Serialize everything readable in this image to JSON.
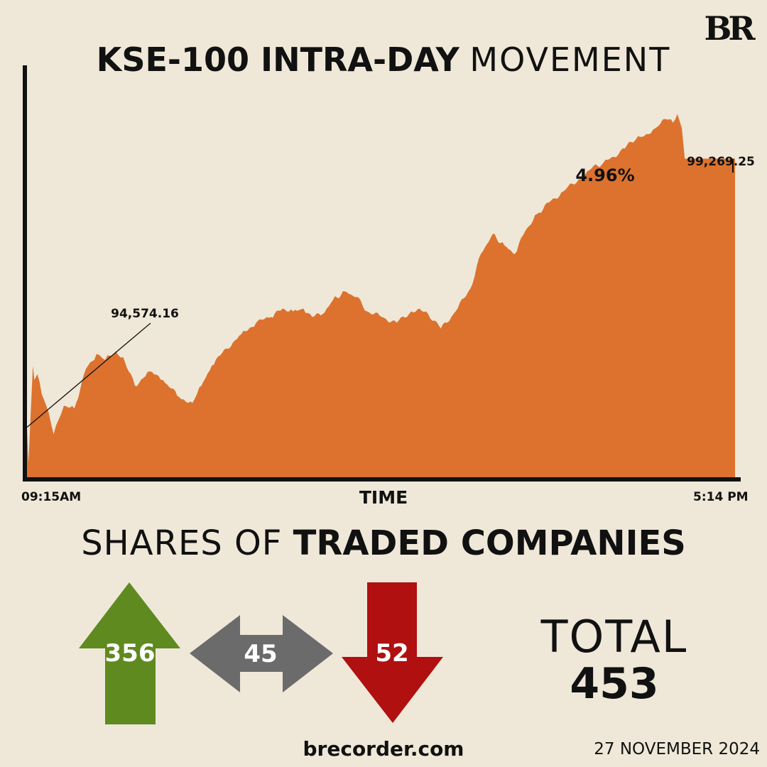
{
  "logo": "BR",
  "title": {
    "bold": "KSE-100 INTRA-DAY",
    "light": "MOVEMENT"
  },
  "colors": {
    "background": "#efe8d8",
    "area": "#dc722e",
    "advance": "#5f8a1f",
    "unchanged": "#6b6b6b",
    "decline": "#b01010",
    "text": "#111111"
  },
  "chart_data": {
    "type": "area",
    "title": "KSE-100 INTRA-DAY MOVEMENT",
    "xlabel": "TIME",
    "ylabel": "",
    "x_start_label": "09:15AM",
    "x_end_label": "5:14 PM",
    "ylim": [
      93700,
      100900
    ],
    "open_value": 94574.16,
    "close_value": 99269.25,
    "change_label": "4.96%",
    "open_label": "94,574.16",
    "close_label": "99,269.25",
    "x": [
      "09:15",
      "09:16",
      "09:19",
      "09:20",
      "09:22",
      "09:25",
      "09:28",
      "09:33",
      "09:38",
      "09:40",
      "09:47",
      "09:55",
      "10:02",
      "10:08",
      "10:15",
      "10:20",
      "10:28",
      "10:38",
      "10:47",
      "10:58",
      "11:07",
      "11:13",
      "11:20",
      "11:30",
      "11:40",
      "11:50",
      "12:00",
      "12:08",
      "12:15",
      "12:22",
      "12:28",
      "12:35",
      "12:42",
      "12:50",
      "12:58",
      "13:05",
      "13:15",
      "13:25",
      "13:35",
      "13:45",
      "13:55",
      "14:05",
      "14:15",
      "14:22",
      "14:30",
      "14:38",
      "14:45",
      "14:52",
      "15:00",
      "15:08",
      "15:18",
      "15:28",
      "15:37",
      "15:45",
      "15:52",
      "15:58",
      "16:05",
      "16:10",
      "16:14",
      "16:20",
      "16:25",
      "16:29",
      "16:32",
      "16:35",
      "16:38",
      "16:40",
      "17:14"
    ],
    "values": [
      94574.16,
      93950,
      95650,
      95400,
      95500,
      95150,
      94950,
      94450,
      94800,
      94950,
      94900,
      95600,
      95850,
      95750,
      95900,
      95800,
      95300,
      95550,
      95400,
      95100,
      95000,
      95300,
      95650,
      95950,
      96200,
      96400,
      96500,
      96650,
      96600,
      96650,
      96500,
      96550,
      96800,
      96950,
      96850,
      96600,
      96500,
      96400,
      96600,
      96600,
      96300,
      96600,
      97000,
      97600,
      97950,
      97750,
      97600,
      98000,
      98300,
      98500,
      98700,
      98900,
      99100,
      99200,
      99300,
      99450,
      99550,
      99650,
      99700,
      99800,
      99950,
      99950,
      99900,
      100050,
      99800,
      99269.25,
      99269.25
    ]
  },
  "section": {
    "light": "SHARES OF",
    "bold": "TRADED COMPANIES"
  },
  "breadth": {
    "advanced": "356",
    "unchanged": "45",
    "declined": "52"
  },
  "total": {
    "label": "TOTAL",
    "value": "453"
  },
  "footer": {
    "site": "brecorder.com",
    "date": "27 NOVEMBER 2024"
  }
}
